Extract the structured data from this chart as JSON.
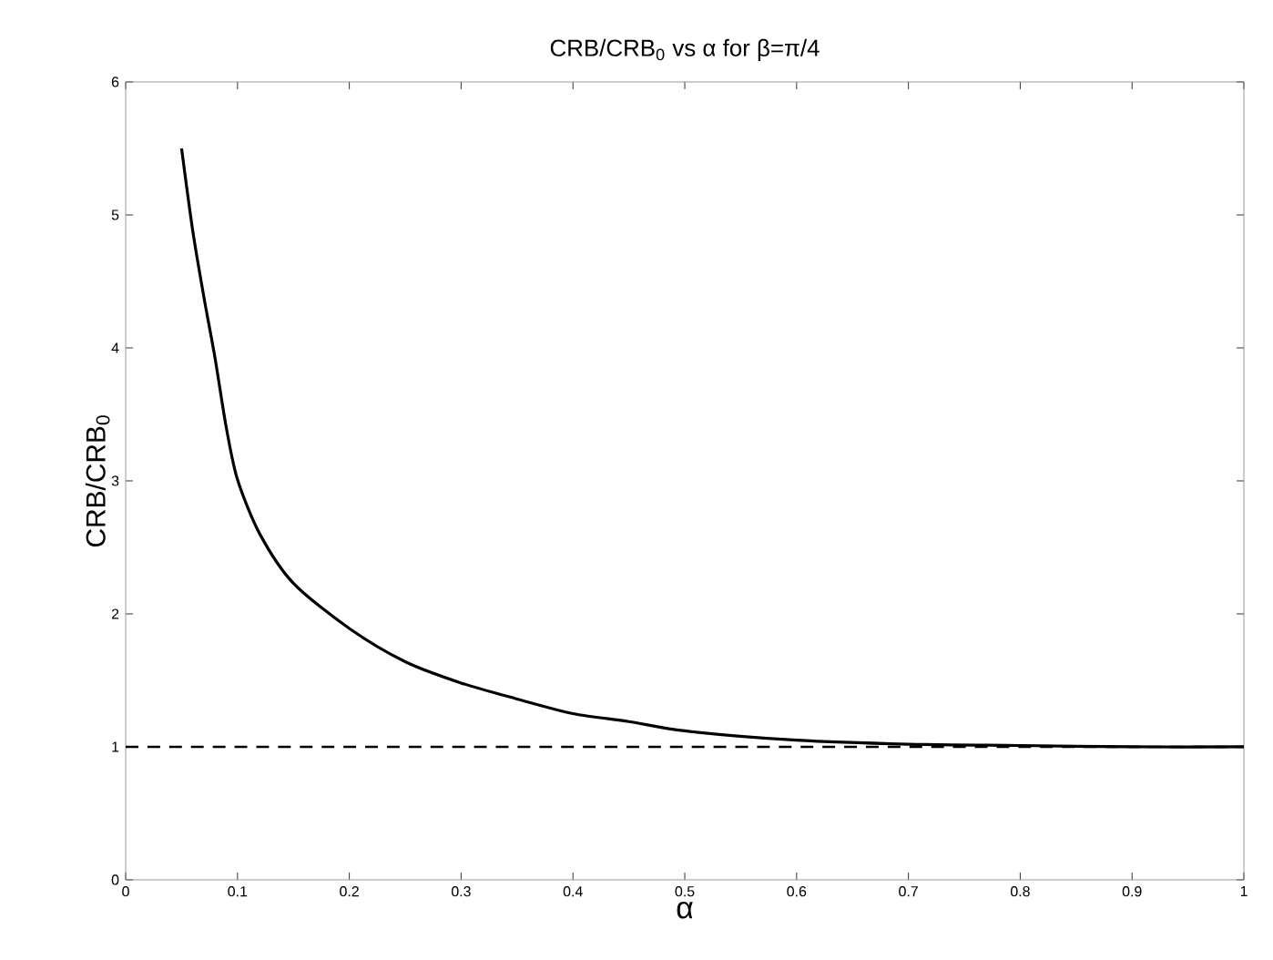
{
  "chart_data": {
    "type": "line",
    "title": "CRB/CRB$_{0}$ vs α for β=π/4",
    "xlabel": "α",
    "ylabel": "CRB/CRB$_{0}$",
    "x": [
      0.05,
      0.06,
      0.07,
      0.08,
      0.09,
      0.1,
      0.12,
      0.15,
      0.2,
      0.25,
      0.3,
      0.35,
      0.4,
      0.45,
      0.5,
      0.6,
      0.7,
      0.8,
      0.9,
      1.0
    ],
    "series": [
      {
        "color": "#000000",
        "values": [
          5.5,
          4.88,
          4.38,
          3.92,
          3.4,
          3.01,
          2.6,
          2.23,
          1.89,
          1.64,
          1.48,
          1.36,
          1.25,
          1.19,
          1.12,
          1.05,
          1.02,
          1.01,
          1.0,
          1.0
        ]
      }
    ],
    "xlim": [
      0,
      1
    ],
    "ylim": [
      0,
      6
    ],
    "xticks": [
      0,
      0.1,
      0.2,
      0.3,
      0.4,
      0.5,
      0.6,
      0.7,
      0.8,
      0.9,
      1
    ],
    "yticks": [
      0,
      1,
      2,
      3,
      4,
      5,
      6
    ],
    "ref_lines": [
      {
        "axis": "y",
        "value": 1,
        "color": "#000000",
        "line_style": "dashed"
      }
    ],
    "marker": "none",
    "line_style": "solid"
  }
}
